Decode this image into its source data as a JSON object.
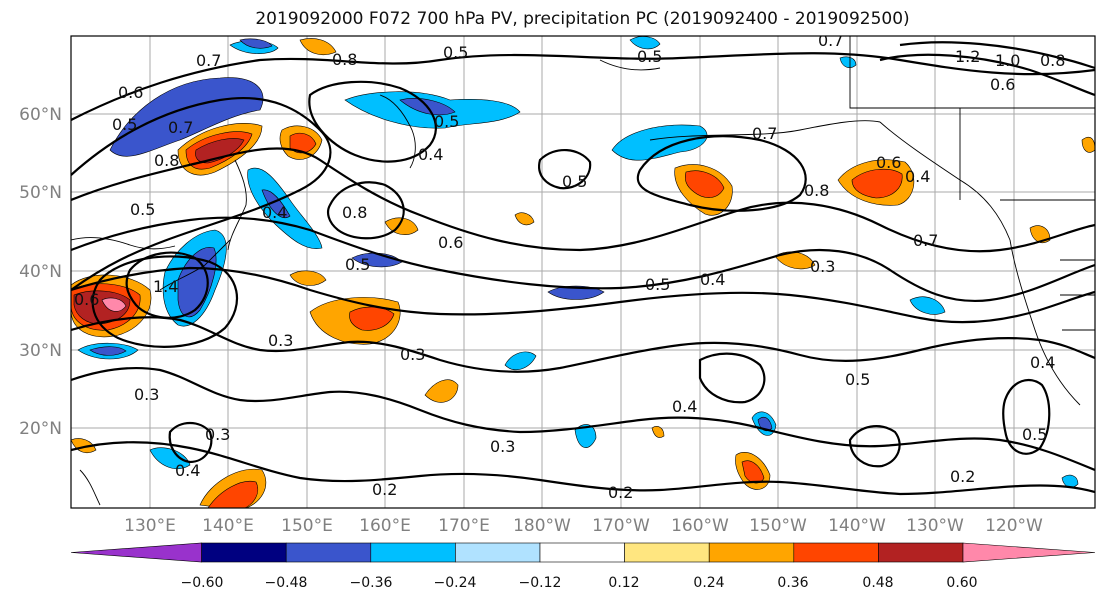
{
  "title": "2019092000 F072 700 hPa PV, precipitation PC (2019092400 - 2019092500)",
  "axes": {
    "lat_labels": [
      "60°N",
      "50°N",
      "40°N",
      "30°N",
      "20°N"
    ],
    "lon_labels": [
      "130°E",
      "140°E",
      "150°E",
      "160°E",
      "170°E",
      "180°W",
      "170°W",
      "160°W",
      "150°W",
      "140°W",
      "130°W",
      "120°W"
    ],
    "label_color": "#808080",
    "grid": true
  },
  "contour_labels": [
    "0.7",
    "0.8",
    "0.5",
    "0.5",
    "0.7",
    "1.2",
    "1.0",
    "0.8",
    "0.6",
    "0.6",
    "0.5",
    "0.7",
    "0.8",
    "0.4",
    "0.5",
    "0.7",
    "0.6",
    "0.4",
    "0.8",
    "0.5",
    "0.4",
    "0.5",
    "0.6",
    "0.8",
    "0.7",
    "0.5",
    "0.5",
    "0.4",
    "0.3",
    "0.6",
    "1.4",
    "0.3",
    "0.3",
    "0.3",
    "0.5",
    "0.4",
    "0.4",
    "0.3",
    "0.3",
    "0.2",
    "0.2",
    "0.2",
    "0.5",
    "0.4"
  ],
  "colorbar": {
    "ticks": [
      "−0.60",
      "−0.48",
      "−0.36",
      "−0.24",
      "−0.12",
      "0.12",
      "0.24",
      "0.36",
      "0.48",
      "0.60"
    ],
    "colors": [
      "#9932cc",
      "#000080",
      "#3a55cc",
      "#00bfff",
      "#b0e2ff",
      "#ffffff",
      "#ffe680",
      "#ffa500",
      "#ff4500",
      "#b22222",
      "#ff88aa"
    ]
  }
}
